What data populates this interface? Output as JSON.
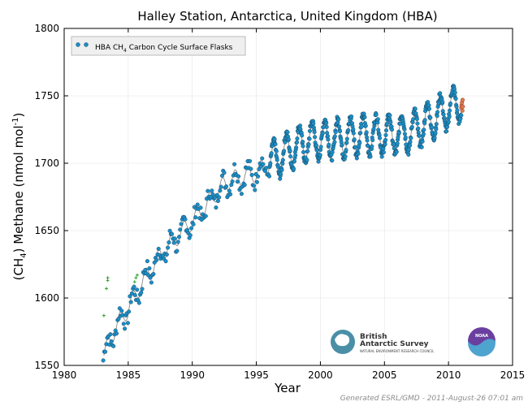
{
  "chart_data": {
    "type": "scatter",
    "title": "Halley Station, Antarctica, United Kingdom (HBA)",
    "xlabel": "Year",
    "ylabel_prefix": "(CH",
    "ylabel_sub": "4",
    "ylabel_main": ") Methane (nmol mol",
    "ylabel_sup": "-1",
    "ylabel_suffix": ")",
    "xlim": [
      1980,
      2015
    ],
    "ylim": [
      1550,
      1800
    ],
    "x_ticks": [
      "1980",
      "1985",
      "1990",
      "1995",
      "2000",
      "2005",
      "2010",
      "2015"
    ],
    "y_ticks": [
      "1550",
      "1600",
      "1650",
      "1700",
      "1750",
      "1800"
    ],
    "grid": true,
    "legend": {
      "placement": "top-left",
      "label_prefix": "HBA CH",
      "label_sub": "4",
      "label_suffix": " Carbon Cycle Surface Flasks"
    },
    "series": [
      {
        "name": "HBA CH4 Carbon Cycle Surface Flasks",
        "color": "#1a8fc8",
        "marker": "circle",
        "trend_points": [
          [
            1983.0,
            1555
          ],
          [
            1984.0,
            1578
          ],
          [
            1985.0,
            1592
          ],
          [
            1986.0,
            1610
          ],
          [
            1987.0,
            1625
          ],
          [
            1988.0,
            1637
          ],
          [
            1989.0,
            1647
          ],
          [
            1990.0,
            1657
          ],
          [
            1991.0,
            1667
          ],
          [
            1992.0,
            1680
          ],
          [
            1993.0,
            1688
          ],
          [
            1994.0,
            1690
          ],
          [
            1995.0,
            1693
          ],
          [
            1996.0,
            1700
          ],
          [
            1997.0,
            1706
          ],
          [
            1998.0,
            1712
          ],
          [
            1999.0,
            1716
          ],
          [
            2000.0,
            1718
          ],
          [
            2001.0,
            1718
          ],
          [
            2002.0,
            1719
          ],
          [
            2003.0,
            1721
          ],
          [
            2004.0,
            1721
          ],
          [
            2005.0,
            1721
          ],
          [
            2006.0,
            1721
          ],
          [
            2007.0,
            1723
          ],
          [
            2008.0,
            1728
          ],
          [
            2009.0,
            1734
          ],
          [
            2010.0,
            1740
          ],
          [
            2011.0,
            1746
          ]
        ],
        "seasonal_amplitude": 14
      },
      {
        "name": "flagged",
        "color": "#2ca02c",
        "marker": "plus",
        "points": [
          [
            1983.1,
            1587
          ],
          [
            1983.3,
            1607
          ],
          [
            1983.4,
            1613
          ],
          [
            1983.4,
            1615
          ],
          [
            1985.5,
            1612
          ],
          [
            1985.6,
            1615
          ],
          [
            1985.7,
            1617
          ]
        ]
      },
      {
        "name": "preliminary",
        "color": "#e0794f",
        "marker": "circle",
        "points": [
          [
            2011.0,
            1741
          ],
          [
            2011.02,
            1743
          ],
          [
            2011.05,
            1745
          ],
          [
            2011.08,
            1739
          ],
          [
            2011.1,
            1747
          ],
          [
            2011.12,
            1742
          ]
        ]
      }
    ],
    "smoothed_curve_color": "#8a8a8a"
  },
  "logos": {
    "bas_line1": "British",
    "bas_line2": "Antarctic Survey",
    "bas_line3": "NATURAL ENVIRONMENT RESEARCH COUNCIL",
    "noaa": "NOAA"
  },
  "footer": "Generated ESRL/GMD - 2011-August-26 07:01 am"
}
